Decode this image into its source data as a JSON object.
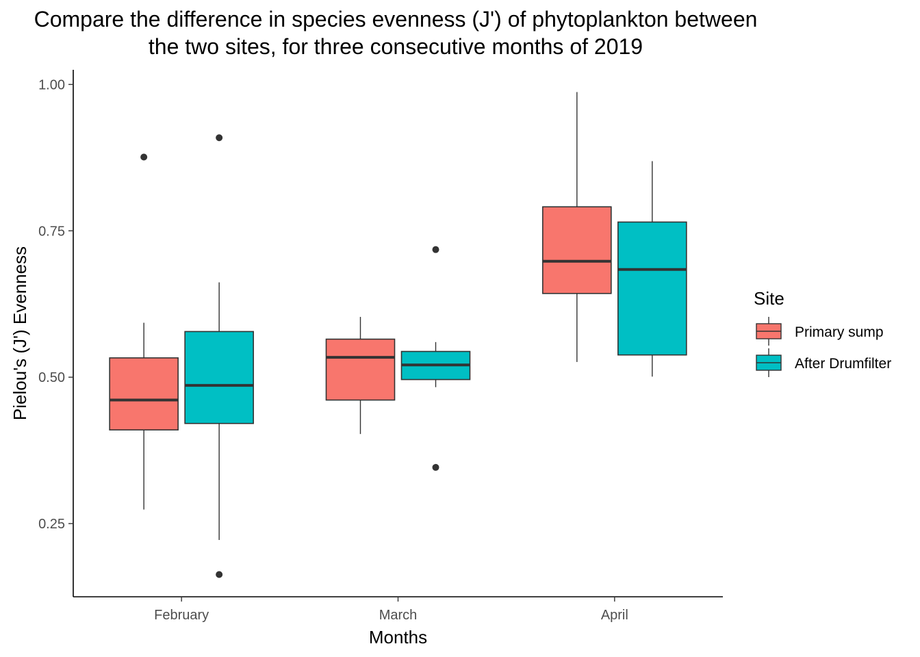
{
  "chart_data": {
    "type": "boxplot",
    "title_lines": [
      "Compare the difference in species evenness (J') of phytoplankton between",
      "the two sites, for three consecutive months of 2019"
    ],
    "xlabel": "Months",
    "ylabel": "Pielou's (J') Evenness",
    "categories": [
      "February",
      "March",
      "April"
    ],
    "ylim": [
      0.125,
      1.025
    ],
    "yticks": [
      0.25,
      0.5,
      0.75,
      1.0
    ],
    "ytick_labels": [
      "0.25",
      "0.50",
      "0.75",
      "1.00"
    ],
    "grid": false,
    "legend": {
      "title": "Site",
      "position": "right"
    },
    "series": [
      {
        "name": "Primary sump",
        "color": "#F8766D",
        "boxes": [
          {
            "category": "February",
            "whisker_low": 0.274,
            "q1": 0.41,
            "median": 0.461,
            "q3": 0.533,
            "whisker_high": 0.593,
            "outliers": [
              0.876
            ]
          },
          {
            "category": "March",
            "whisker_low": 0.403,
            "q1": 0.461,
            "median": 0.534,
            "q3": 0.565,
            "whisker_high": 0.603,
            "outliers": []
          },
          {
            "category": "April",
            "whisker_low": 0.526,
            "q1": 0.643,
            "median": 0.698,
            "q3": 0.791,
            "whisker_high": 0.987,
            "outliers": []
          }
        ]
      },
      {
        "name": "After Drumfilter",
        "color": "#00BFC4",
        "boxes": [
          {
            "category": "February",
            "whisker_low": 0.222,
            "q1": 0.421,
            "median": 0.486,
            "q3": 0.578,
            "whisker_high": 0.662,
            "outliers": [
              0.909,
              0.163
            ]
          },
          {
            "category": "March",
            "whisker_low": 0.483,
            "q1": 0.496,
            "median": 0.521,
            "q3": 0.544,
            "whisker_high": 0.56,
            "outliers": [
              0.718,
              0.346
            ]
          },
          {
            "category": "April",
            "whisker_low": 0.501,
            "q1": 0.538,
            "median": 0.684,
            "q3": 0.765,
            "whisker_high": 0.869,
            "outliers": []
          }
        ]
      }
    ]
  }
}
